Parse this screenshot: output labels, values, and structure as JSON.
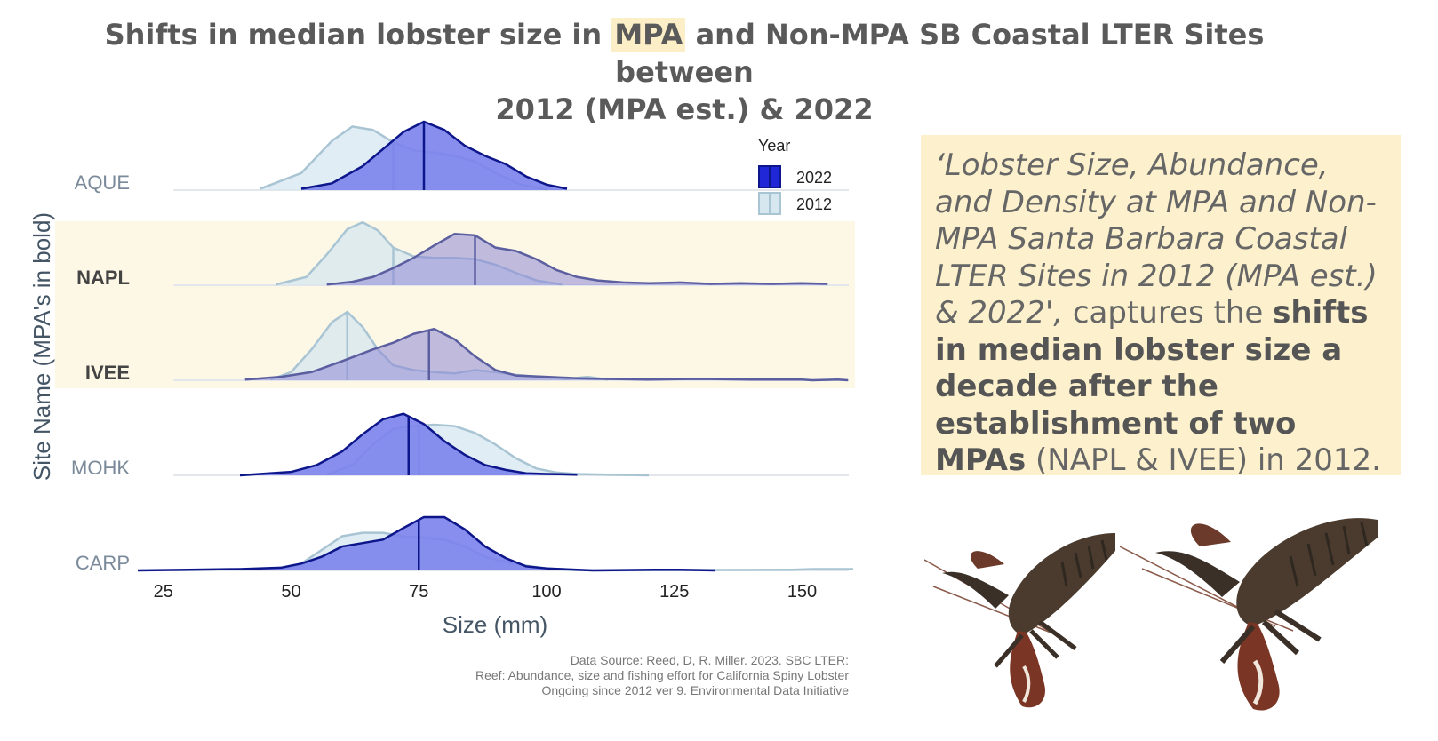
{
  "title": {
    "part1": "Shifts in median lobster size in ",
    "highlight": "MPA",
    "part2": " and Non-MPA SB Coastal LTER Sites between",
    "line2": "2012 (MPA est.) & 2022"
  },
  "note": {
    "italic": "‘Lobster Size, Abundance, and Density at MPA and Non-MPA Santa Barbara Coastal LTER Sites in 2012 (MPA est.) & 2022',",
    "plain1": " captures the ",
    "bold": "shifts in median lobster size a decade after the establishment of two MPAs",
    "plain2": " (NAPL & IVEE) in 2012."
  },
  "source": {
    "line1": "Data Source: Reed, D, R. Miller. 2023. SBC LTER:",
    "line2": "Reef: Abundance, size and fishing effort for California Spiny Lobster",
    "line3": "Ongoing since 2012 ver 9. Environmental Data Initiative"
  },
  "images": [
    {
      "name": "lobster-left-image",
      "icon": "lobster-icon"
    },
    {
      "name": "lobster-right-image",
      "icon": "lobster-icon"
    }
  ],
  "chart_data": {
    "type": "ridgeline",
    "xlabel": "Size (mm)",
    "ylabel": "Site Name (MPA's in bold)",
    "xlim": [
      20,
      160
    ],
    "xticks": [
      25,
      50,
      75,
      100,
      125,
      150
    ],
    "legend": {
      "title": "Year",
      "placement": "top-right",
      "entries": [
        "2022",
        "2012"
      ]
    },
    "colors": {
      "2022_fill": "#7b82ec",
      "2022_line": "#0d168a",
      "2012_fill": "#d6e7f0",
      "2012_line": "#a9c5d4",
      "mpa_band": "#fdf8e6"
    },
    "sites": [
      {
        "name": "AQUE",
        "mpa": false,
        "2012": {
          "median": 70,
          "x": [
            44,
            52,
            58,
            62,
            66,
            70,
            74,
            78,
            82,
            86,
            90,
            95,
            100
          ],
          "y": [
            0.02,
            0.25,
            0.72,
            0.93,
            0.88,
            0.7,
            0.58,
            0.55,
            0.5,
            0.42,
            0.25,
            0.08,
            0.01
          ]
        },
        "2022": {
          "median": 76,
          "x": [
            52,
            58,
            64,
            68,
            72,
            76,
            80,
            84,
            88,
            92,
            96,
            100,
            104
          ],
          "y": [
            0.02,
            0.1,
            0.35,
            0.6,
            0.85,
            1.0,
            0.88,
            0.65,
            0.5,
            0.38,
            0.2,
            0.08,
            0.02
          ]
        }
      },
      {
        "name": "NAPL",
        "mpa": true,
        "2012": {
          "median": 70,
          "x": [
            47,
            53,
            57,
            61,
            64,
            67,
            70,
            74,
            78,
            82,
            86,
            90,
            94,
            98,
            103
          ],
          "y": [
            0.01,
            0.12,
            0.45,
            0.82,
            0.92,
            0.8,
            0.55,
            0.42,
            0.4,
            0.4,
            0.38,
            0.3,
            0.18,
            0.07,
            0.01
          ]
        },
        "2022": {
          "median": 86,
          "x": [
            57,
            62,
            66,
            70,
            74,
            78,
            82,
            86,
            90,
            94,
            98,
            102,
            106,
            110,
            115,
            120,
            126,
            132,
            138,
            144,
            150,
            155
          ],
          "y": [
            0.01,
            0.05,
            0.12,
            0.25,
            0.4,
            0.58,
            0.75,
            0.73,
            0.55,
            0.5,
            0.38,
            0.22,
            0.12,
            0.07,
            0.04,
            0.03,
            0.04,
            0.02,
            0.03,
            0.02,
            0.03,
            0.02
          ]
        }
      },
      {
        "name": "IVEE",
        "mpa": true,
        "2012": {
          "median": 61,
          "x": [
            46,
            50,
            54,
            58,
            61,
            64,
            67,
            70,
            74,
            78,
            82,
            86,
            90,
            94,
            100,
            104,
            108,
            112
          ],
          "y": [
            0.01,
            0.12,
            0.45,
            0.85,
            1.0,
            0.78,
            0.45,
            0.22,
            0.15,
            0.12,
            0.1,
            0.15,
            0.12,
            0.08,
            0.04,
            0.02,
            0.05,
            0.01
          ]
        },
        "2022": {
          "median": 77,
          "x": [
            41,
            48,
            54,
            60,
            66,
            70,
            74,
            78,
            82,
            86,
            90,
            94,
            100,
            106,
            112,
            120,
            130,
            140,
            150,
            152,
            157,
            159
          ],
          "y": [
            0.01,
            0.05,
            0.12,
            0.28,
            0.45,
            0.55,
            0.68,
            0.75,
            0.6,
            0.35,
            0.15,
            0.07,
            0.05,
            0.03,
            0.02,
            0.01,
            0.02,
            0.01,
            0.01,
            0.0,
            0.01,
            0.0
          ]
        }
      },
      {
        "name": "MOHK",
        "mpa": false,
        "2012": {
          "median": 75,
          "x": [
            57,
            62,
            66,
            70,
            74,
            78,
            82,
            86,
            90,
            94,
            98,
            102,
            106,
            112,
            120
          ],
          "y": [
            0.01,
            0.15,
            0.45,
            0.68,
            0.72,
            0.74,
            0.72,
            0.62,
            0.45,
            0.25,
            0.1,
            0.04,
            0.02,
            0.01,
            0.0
          ]
        },
        "2022": {
          "median": 73,
          "x": [
            40,
            50,
            55,
            60,
            64,
            68,
            72,
            76,
            80,
            84,
            88,
            92,
            96,
            100,
            106
          ],
          "y": [
            0.0,
            0.05,
            0.15,
            0.35,
            0.6,
            0.82,
            0.9,
            0.75,
            0.5,
            0.3,
            0.15,
            0.08,
            0.03,
            0.02,
            0.01
          ]
        }
      },
      {
        "name": "CARP",
        "mpa": false,
        "2012": {
          "median": 75,
          "x": [
            48,
            52,
            56,
            60,
            64,
            68,
            72,
            76,
            80,
            84,
            88,
            92,
            96,
            100,
            104,
            110,
            148,
            152,
            156,
            160
          ],
          "y": [
            0.01,
            0.1,
            0.3,
            0.5,
            0.55,
            0.55,
            0.5,
            0.48,
            0.45,
            0.35,
            0.2,
            0.12,
            0.07,
            0.03,
            0.01,
            0.0,
            0.01,
            0.02,
            0.02,
            0.02
          ]
        },
        "2022": {
          "median": 75,
          "x": [
            20,
            30,
            40,
            48,
            52,
            56,
            60,
            64,
            68,
            72,
            76,
            80,
            84,
            88,
            92,
            96,
            100,
            106,
            109,
            121,
            126,
            133
          ],
          "y": [
            0.0,
            0.01,
            0.02,
            0.04,
            0.1,
            0.2,
            0.35,
            0.4,
            0.45,
            0.62,
            0.78,
            0.78,
            0.6,
            0.35,
            0.18,
            0.06,
            0.03,
            0.01,
            0.0,
            0.01,
            0.01,
            0.0
          ]
        }
      }
    ]
  }
}
